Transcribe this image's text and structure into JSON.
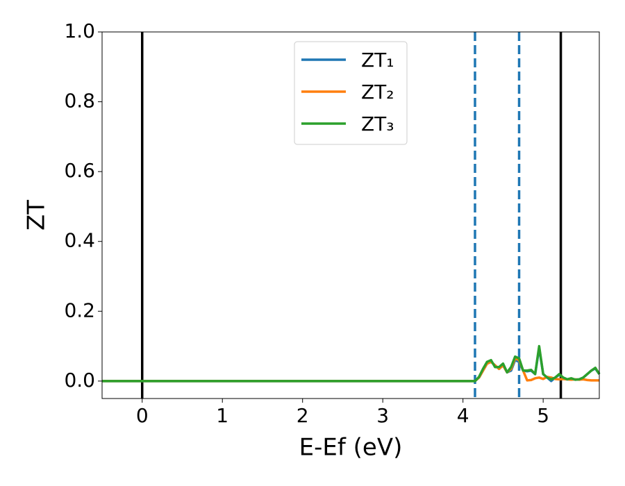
{
  "chart_data": {
    "type": "line",
    "x_label": "E-Ef (eV)",
    "y_label": "ZT",
    "xlim": [
      -0.5,
      5.7
    ],
    "ylim": [
      -0.05,
      1.0
    ],
    "xticks": [
      0,
      1,
      2,
      3,
      4,
      5
    ],
    "yticks": [
      {
        "value": 0,
        "label": "0.0"
      },
      {
        "value": 0.2,
        "label": "0.2"
      },
      {
        "value": 0.4,
        "label": "0.4"
      },
      {
        "value": 0.6,
        "label": "0.6"
      },
      {
        "value": 0.8,
        "label": "0.8"
      },
      {
        "value": 1,
        "label": "1.0"
      }
    ],
    "legend": "upper center",
    "vlines": [
      {
        "x": 0,
        "color": "#000000",
        "style": "solid"
      },
      {
        "x": 5.22,
        "color": "#000000",
        "style": "solid"
      },
      {
        "x": 4.15,
        "color": "#1f77b4",
        "style": "dashed"
      },
      {
        "x": 4.7,
        "color": "#1f77b4",
        "style": "dashed"
      }
    ],
    "x": [
      -0.5,
      4.0,
      4.15,
      4.2,
      4.25,
      4.3,
      4.35,
      4.4,
      4.45,
      4.5,
      4.55,
      4.6,
      4.65,
      4.7,
      4.75,
      4.8,
      4.85,
      4.9,
      4.95,
      5.0,
      5.05,
      5.1,
      5.15,
      5.2,
      5.25,
      5.3,
      5.35,
      5.4,
      5.45,
      5.5,
      5.55,
      5.6,
      5.65,
      5.7
    ],
    "series": [
      {
        "name": "ZT₁",
        "color": "#1f77b4",
        "values": [
          0,
          0,
          0,
          0.01,
          0.03,
          0.05,
          0.055,
          0.045,
          0.035,
          0.045,
          0.025,
          0.03,
          0.06,
          0.055,
          0.03,
          0.028,
          0.03,
          0.02,
          0.095,
          0.02,
          0.01,
          0.0,
          0.01,
          0.018,
          0.01,
          0.005,
          0.007,
          0.004,
          0.005,
          0.01,
          0.02,
          0.03,
          0.036,
          0.02
        ]
      },
      {
        "name": "ZT₂",
        "color": "#ff7f0e",
        "values": [
          0,
          0,
          0,
          0.01,
          0.03,
          0.05,
          0.055,
          0.045,
          0.035,
          0.045,
          0.025,
          0.035,
          0.065,
          0.06,
          0.03,
          0.002,
          0.003,
          0.008,
          0.01,
          0.006,
          0.012,
          0.01,
          0.006,
          0.005,
          0.006,
          0.005,
          0.004,
          0.005,
          0.004,
          0.005,
          0.003,
          0.002,
          0.002,
          0.002
        ]
      },
      {
        "name": "ZT₃",
        "color": "#2ca02c",
        "values": [
          0,
          0,
          0,
          0.012,
          0.035,
          0.055,
          0.06,
          0.04,
          0.04,
          0.05,
          0.025,
          0.04,
          0.07,
          0.065,
          0.03,
          0.03,
          0.032,
          0.02,
          0.1,
          0.02,
          0.01,
          0.005,
          0.01,
          0.02,
          0.01,
          0.005,
          0.008,
          0.004,
          0.005,
          0.01,
          0.02,
          0.03,
          0.038,
          0.02
        ]
      }
    ]
  }
}
